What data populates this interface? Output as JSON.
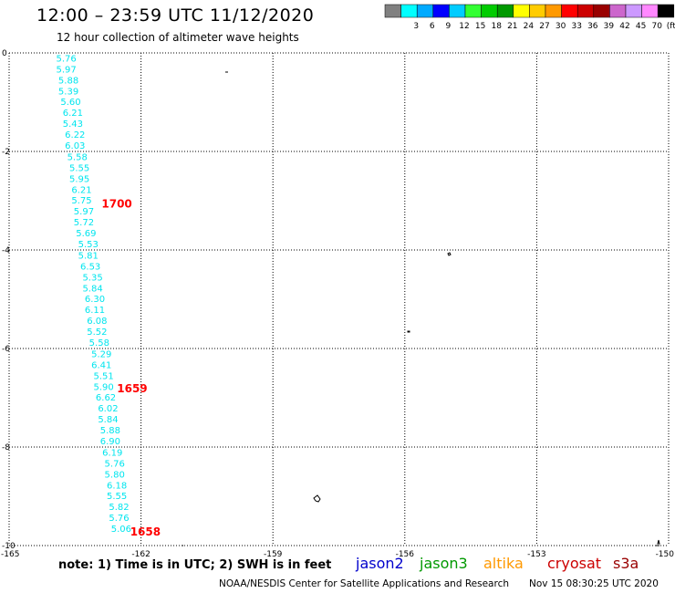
{
  "header": {
    "title": "12:00 – 23:59 UTC 11/12/2020",
    "subtitle": "12 hour collection of altimeter wave heights"
  },
  "legend": {
    "unit": "(ft)",
    "swatches": [
      {
        "color": "#808080",
        "label": ""
      },
      {
        "color": "#00ffff",
        "label": "3"
      },
      {
        "color": "#00aaff",
        "label": "6"
      },
      {
        "color": "#0000ff",
        "label": "9"
      },
      {
        "color": "#00ccff",
        "label": "12"
      },
      {
        "color": "#33ff33",
        "label": "15"
      },
      {
        "color": "#00cc00",
        "label": "18"
      },
      {
        "color": "#009900",
        "label": "21"
      },
      {
        "color": "#ffff00",
        "label": "24"
      },
      {
        "color": "#ffcc00",
        "label": "27"
      },
      {
        "color": "#ff9900",
        "label": "30"
      },
      {
        "color": "#ff0000",
        "label": "33"
      },
      {
        "color": "#cc0000",
        "label": "36"
      },
      {
        "color": "#990000",
        "label": "39"
      },
      {
        "color": "#cc66cc",
        "label": "42"
      },
      {
        "color": "#cc99ff",
        "label": "45"
      },
      {
        "color": "#ff88ff",
        "label": "70"
      },
      {
        "color": "#000000",
        "label": ""
      }
    ]
  },
  "map": {
    "x_ticks": [
      "-165",
      "-162",
      "-159",
      "-156",
      "-153",
      "-150"
    ],
    "y_ticks": [
      "0",
      "-2",
      "-4",
      "-6",
      "-8",
      "-10"
    ],
    "xlim": [
      -165,
      -150
    ],
    "ylim": [
      -10,
      0
    ],
    "track_color": "#00e5ee",
    "time_color": "#ff0000",
    "track_values": [
      {
        "lon": -163.7,
        "lat": -0.1,
        "v": "5.76"
      },
      {
        "lon": -163.7,
        "lat": -0.32,
        "v": "5.97"
      },
      {
        "lon": -163.65,
        "lat": -0.55,
        "v": "5.88"
      },
      {
        "lon": -163.65,
        "lat": -0.77,
        "v": "5.39"
      },
      {
        "lon": -163.6,
        "lat": -0.98,
        "v": "5.60"
      },
      {
        "lon": -163.55,
        "lat": -1.2,
        "v": "6.21"
      },
      {
        "lon": -163.55,
        "lat": -1.43,
        "v": "5.43"
      },
      {
        "lon": -163.5,
        "lat": -1.65,
        "v": "6.22"
      },
      {
        "lon": -163.5,
        "lat": -1.87,
        "v": "6.03"
      },
      {
        "lon": -163.45,
        "lat": -2.1,
        "v": "5.58"
      },
      {
        "lon": -163.4,
        "lat": -2.32,
        "v": "5.55"
      },
      {
        "lon": -163.4,
        "lat": -2.55,
        "v": "5.95"
      },
      {
        "lon": -163.35,
        "lat": -2.77,
        "v": "6.21"
      },
      {
        "lon": -163.35,
        "lat": -2.98,
        "v": "5.75"
      },
      {
        "lon": -163.3,
        "lat": -3.2,
        "v": "5.97"
      },
      {
        "lon": -163.3,
        "lat": -3.43,
        "v": "5.72"
      },
      {
        "lon": -163.25,
        "lat": -3.65,
        "v": "5.69"
      },
      {
        "lon": -163.2,
        "lat": -3.87,
        "v": "5.53"
      },
      {
        "lon": -163.2,
        "lat": -4.1,
        "v": "5.81"
      },
      {
        "lon": -163.15,
        "lat": -4.32,
        "v": "6.53"
      },
      {
        "lon": -163.1,
        "lat": -4.55,
        "v": "5.35"
      },
      {
        "lon": -163.1,
        "lat": -4.77,
        "v": "5.84"
      },
      {
        "lon": -163.05,
        "lat": -4.98,
        "v": "6.30"
      },
      {
        "lon": -163.05,
        "lat": -5.2,
        "v": "6.11"
      },
      {
        "lon": -163.0,
        "lat": -5.43,
        "v": "6.08"
      },
      {
        "lon": -163.0,
        "lat": -5.65,
        "v": "5.52"
      },
      {
        "lon": -162.95,
        "lat": -5.87,
        "v": "5.58"
      },
      {
        "lon": -162.9,
        "lat": -6.1,
        "v": "5.29"
      },
      {
        "lon": -162.9,
        "lat": -6.32,
        "v": "6.41"
      },
      {
        "lon": -162.85,
        "lat": -6.55,
        "v": "5.51"
      },
      {
        "lon": -162.85,
        "lat": -6.77,
        "v": "5.90"
      },
      {
        "lon": -162.8,
        "lat": -6.98,
        "v": "6.62"
      },
      {
        "lon": -162.75,
        "lat": -7.2,
        "v": "6.02"
      },
      {
        "lon": -162.75,
        "lat": -7.43,
        "v": "5.84"
      },
      {
        "lon": -162.7,
        "lat": -7.65,
        "v": "5.88"
      },
      {
        "lon": -162.7,
        "lat": -7.87,
        "v": "6.90"
      },
      {
        "lon": -162.65,
        "lat": -8.1,
        "v": "6.19"
      },
      {
        "lon": -162.6,
        "lat": -8.32,
        "v": "5.76"
      },
      {
        "lon": -162.6,
        "lat": -8.55,
        "v": "5.80"
      },
      {
        "lon": -162.55,
        "lat": -8.77,
        "v": "6.18"
      },
      {
        "lon": -162.55,
        "lat": -8.98,
        "v": "5.55"
      },
      {
        "lon": -162.5,
        "lat": -9.2,
        "v": "5.82"
      },
      {
        "lon": -162.5,
        "lat": -9.43,
        "v": "5.76"
      },
      {
        "lon": -162.45,
        "lat": -9.65,
        "v": "5.06"
      }
    ],
    "time_labels": [
      {
        "lon": -162.55,
        "lat": -3.05,
        "t": "1700"
      },
      {
        "lon": -162.2,
        "lat": -6.8,
        "t": "1659"
      },
      {
        "lon": -161.9,
        "lat": -9.7,
        "t": "1658"
      }
    ]
  },
  "footer": {
    "note": "note:  1) Time is in UTC;  2) SWH is in feet",
    "satellites": [
      {
        "name": "jason2",
        "color": "#0000cc"
      },
      {
        "name": "jason3",
        "color": "#009900"
      },
      {
        "name": "altika",
        "color": "#ff9900"
      },
      {
        "name": "cryosat",
        "color": "#cc0000"
      },
      {
        "name": "s3a",
        "color": "#990000"
      }
    ],
    "credit": "NOAA/NESDIS Center for Satellite Applications and Research",
    "timestamp": "Nov 15 08:30:25 UTC 2020"
  }
}
